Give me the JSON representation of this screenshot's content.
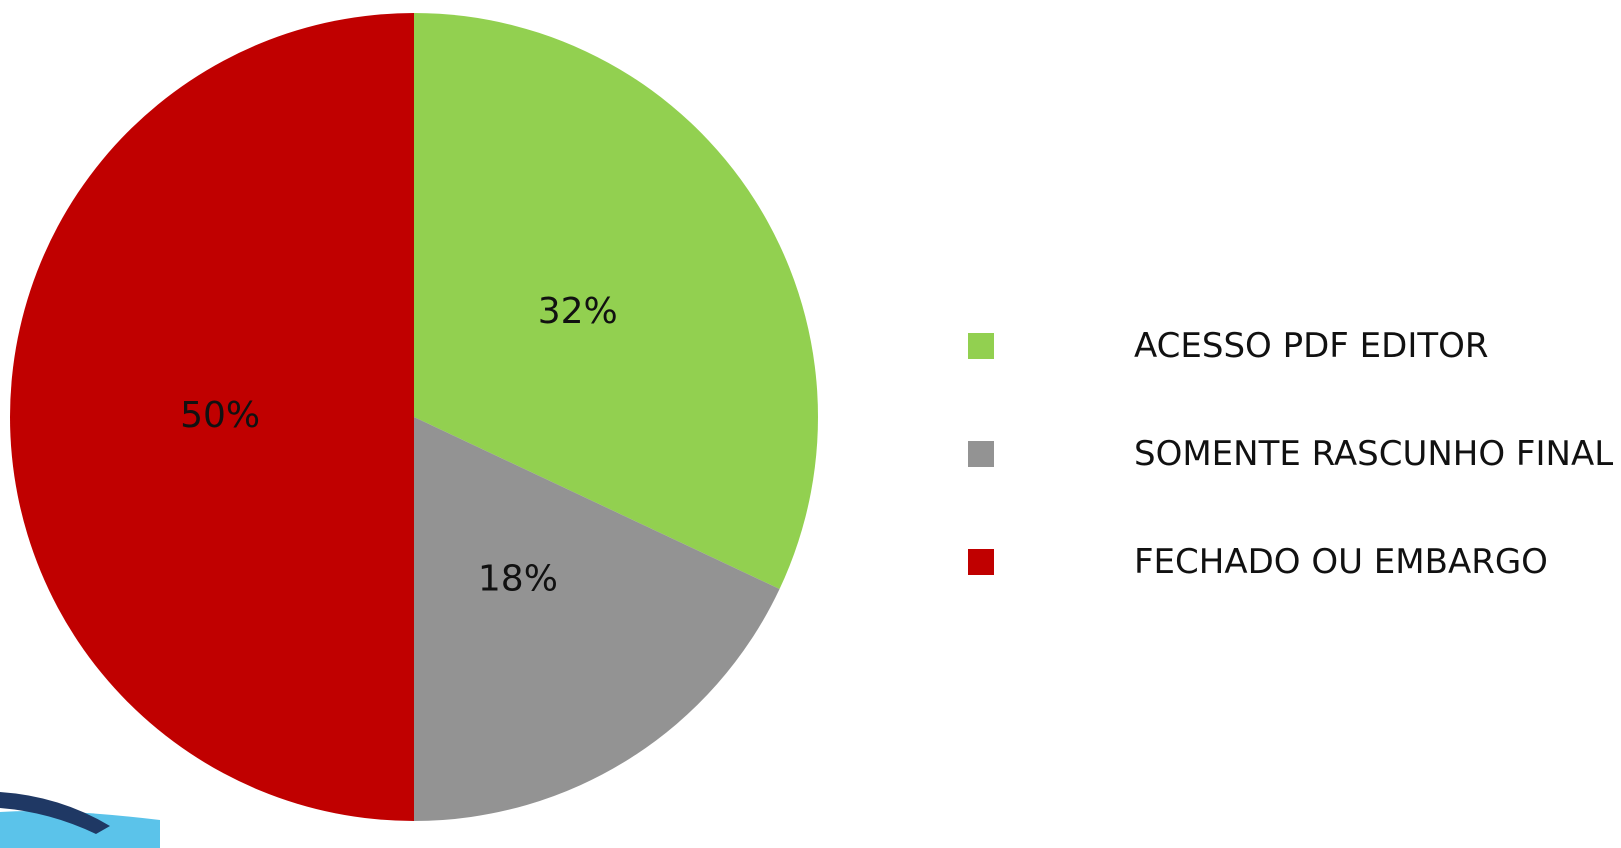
{
  "chart_data": {
    "type": "pie",
    "title": "",
    "slices": [
      {
        "label": "ACESSO PDF EDITOR",
        "value": 32,
        "value_label": "32%",
        "color": "#92D050"
      },
      {
        "label": "SOMENTE RASCUNHO FINAL",
        "value": 18,
        "value_label": "18%",
        "color": "#939393"
      },
      {
        "label": "FECHADO OU EMBARGO",
        "value": 50,
        "value_label": "50%",
        "color": "#C00000"
      }
    ],
    "legend_position": "right",
    "start_angle": "top, clockwise"
  },
  "decoration": {
    "corner_swoosh_colors": [
      "#1F3864",
      "#5BC3EA"
    ]
  }
}
